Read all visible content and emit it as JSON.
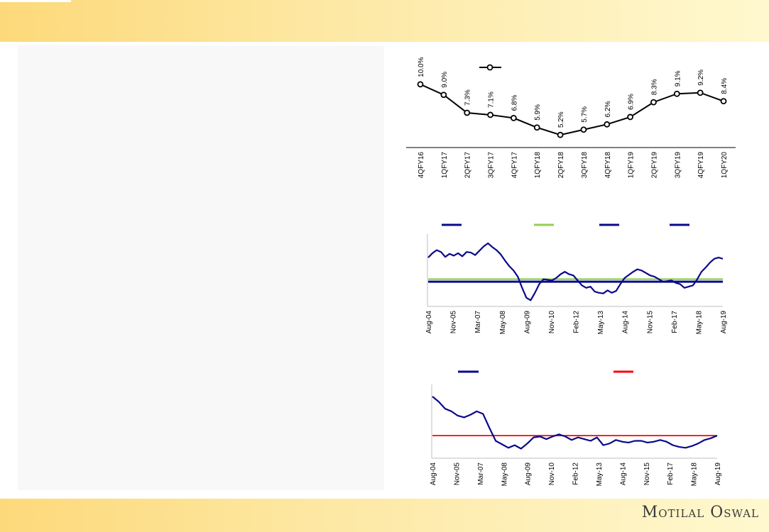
{
  "brand": {
    "name": "Motilal Oswal"
  },
  "chart_data": [
    {
      "type": "line",
      "categories": [
        "4QFY16",
        "1QFY17",
        "2QFY17",
        "3QFY17",
        "4QFY17",
        "1QFY18",
        "2QFY18",
        "3QFY18",
        "4QFY18",
        "1QFY19",
        "2QFY19",
        "3QFY19",
        "4QFY19",
        "1QFY20"
      ],
      "series": [
        {
          "values": [
            10.0,
            9.0,
            7.3,
            7.1,
            6.8,
            5.9,
            5.2,
            5.7,
            6.2,
            6.9,
            8.3,
            9.1,
            9.2,
            8.4
          ]
        }
      ],
      "data_labels": [
        "10.0%",
        "9.0%",
        "7.3%",
        "7.1%",
        "6.8%",
        "5.9%",
        "5.2%",
        "5.7%",
        "6.2%",
        "6.9%",
        "8.3%",
        "9.1%",
        "9.2%",
        "8.4%"
      ],
      "legend": {
        "placement": "top-center"
      },
      "colors": {
        "line": "#000000",
        "marker_fill": "#ffffff"
      },
      "grid": false
    },
    {
      "type": "line",
      "x_labels": [
        "Aug-04",
        "Nov-05",
        "Mar-07",
        "May-08",
        "Aug-09",
        "Nov-10",
        "Feb-12",
        "May-13",
        "Aug-14",
        "Nov-15",
        "Feb-17",
        "May-18",
        "Aug-19"
      ],
      "series": [
        {
          "values": [
            1.95,
            2.3,
            2.55,
            2.4,
            2.0,
            2.25,
            2.1,
            2.3,
            2.05,
            2.4,
            2.35,
            2.15,
            2.5,
            2.85,
            3.1,
            2.8,
            2.55,
            2.2,
            1.7,
            1.25,
            0.9,
            0.4,
            -0.5,
            -1.3,
            -1.5,
            -0.9,
            -0.2,
            0.2,
            0.15,
            0.1,
            0.3,
            0.6,
            0.8,
            0.6,
            0.5,
            0.1,
            -0.3,
            -0.5,
            -0.4,
            -0.8,
            -0.9,
            -0.95,
            -0.7,
            -0.9,
            -0.75,
            -0.2,
            0.3,
            0.55,
            0.8,
            1.0,
            0.9,
            0.7,
            0.5,
            0.4,
            0.2,
            0.0,
            0.05,
            0.1,
            -0.1,
            -0.2,
            -0.5,
            -0.4,
            -0.3,
            0.2,
            0.8,
            1.15,
            1.55,
            1.85,
            1.95,
            1.85
          ]
        },
        {
          "values": [
            0.2,
            0.2
          ]
        },
        {
          "values": [
            0.0,
            0.0
          ]
        }
      ],
      "legend": {
        "placement": "top"
      },
      "colors": {
        "series1": "#0a0a8c",
        "series2": "#92d050",
        "series3": "#0a0a8c"
      },
      "grid": false
    },
    {
      "type": "line",
      "x_labels": [
        "Aug-04",
        "Nov-05",
        "Mar-07",
        "May-08",
        "Aug-09",
        "Nov-10",
        "Feb-12",
        "May-13",
        "Aug-14",
        "Nov-15",
        "Feb-17",
        "May-18",
        "Aug-19"
      ],
      "series": [
        {
          "values": [
            9.6,
            9.0,
            8.2,
            7.9,
            7.4,
            7.2,
            7.5,
            7.9,
            7.6,
            6.0,
            4.5,
            4.1,
            3.7,
            4.0,
            3.6,
            4.2,
            4.9,
            5.0,
            4.7,
            5.0,
            5.25,
            5.0,
            4.6,
            4.9,
            4.7,
            4.5,
            4.9,
            4.0,
            4.2,
            4.6,
            4.4,
            4.3,
            4.5,
            4.5,
            4.3,
            4.4,
            4.6,
            4.4,
            4.0,
            3.8,
            3.7,
            3.9,
            4.2,
            4.6,
            4.8,
            5.1
          ]
        },
        {
          "values": [
            5.1,
            5.1
          ]
        }
      ],
      "legend": {
        "placement": "top"
      },
      "colors": {
        "series1": "#0a0a8c",
        "series2": "#ff0000"
      },
      "grid": false
    }
  ]
}
